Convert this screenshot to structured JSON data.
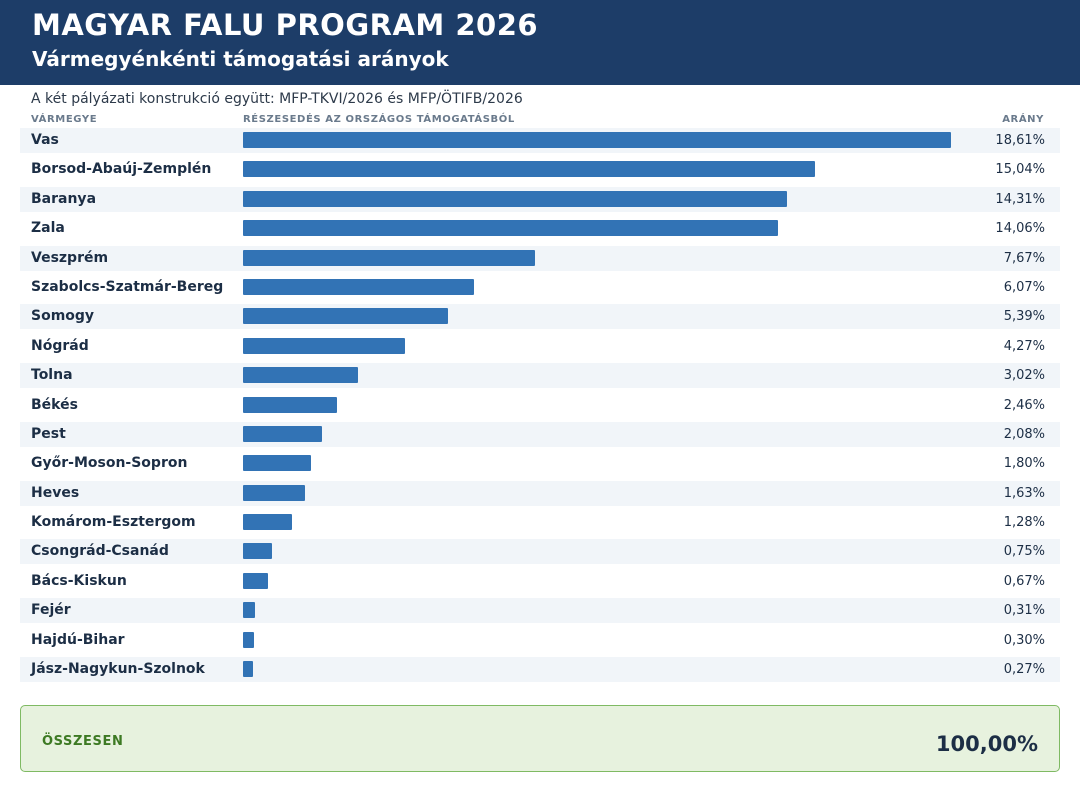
{
  "header": {
    "title": "MAGYAR FALU PROGRAM 2026",
    "subtitle": "Vármegyénkénti támogatási arányok"
  },
  "note": "A két pályázati konstrukció együtt: MFP-TKVI/2026 és MFP/ÖTIFB/2026",
  "columns": {
    "county": "VÁRMEGYE",
    "share": "RÉSZESEDÉS AZ ORSZÁGOS TÁMOGATÁSBÓL",
    "ratio": "ARÁNY"
  },
  "colors": {
    "header_bg": "#1d3d68",
    "bar": "#3273b5",
    "row_alt": "#f1f5f9",
    "total_bg": "#e7f2de",
    "total_border": "#7fba63",
    "total_label": "#3d7a23"
  },
  "chart_data": {
    "type": "bar",
    "orientation": "horizontal",
    "title": "MAGYAR FALU PROGRAM 2026",
    "subtitle": "Vármegyénkénti támogatási arányok",
    "xlabel": "RÉSZESEDÉS AZ ORSZÁGOS TÁMOGATÁSBÓL",
    "ylabel": "VÁRMEGYE",
    "xlim": [
      0,
      18.61
    ],
    "grid": false,
    "categories": [
      "Vas",
      "Borsod-Abaúj-Zemplén",
      "Baranya",
      "Zala",
      "Veszprém",
      "Szabolcs-Szatmár-Bereg",
      "Somogy",
      "Nógrád",
      "Tolna",
      "Békés",
      "Pest",
      "Győr-Moson-Sopron",
      "Heves",
      "Komárom-Esztergom",
      "Csongrád-Csanád",
      "Bács-Kiskun",
      "Fejér",
      "Hajdú-Bihar",
      "Jász-Nagykun-Szolnok"
    ],
    "values": [
      18.61,
      15.04,
      14.31,
      14.06,
      7.67,
      6.07,
      5.39,
      4.27,
      3.02,
      2.46,
      2.08,
      1.8,
      1.63,
      1.28,
      0.75,
      0.67,
      0.31,
      0.3,
      0.27
    ],
    "labels": [
      "18,61%",
      "15,04%",
      "14,31%",
      "14,06%",
      "7,67%",
      "6,07%",
      "5,39%",
      "4,27%",
      "3,02%",
      "2,46%",
      "2,08%",
      "1,80%",
      "1,63%",
      "1,28%",
      "0,75%",
      "0,67%",
      "0,31%",
      "0,30%",
      "0,27%"
    ]
  },
  "total": {
    "label": "ÖSSZESEN",
    "value": "100,00%"
  }
}
